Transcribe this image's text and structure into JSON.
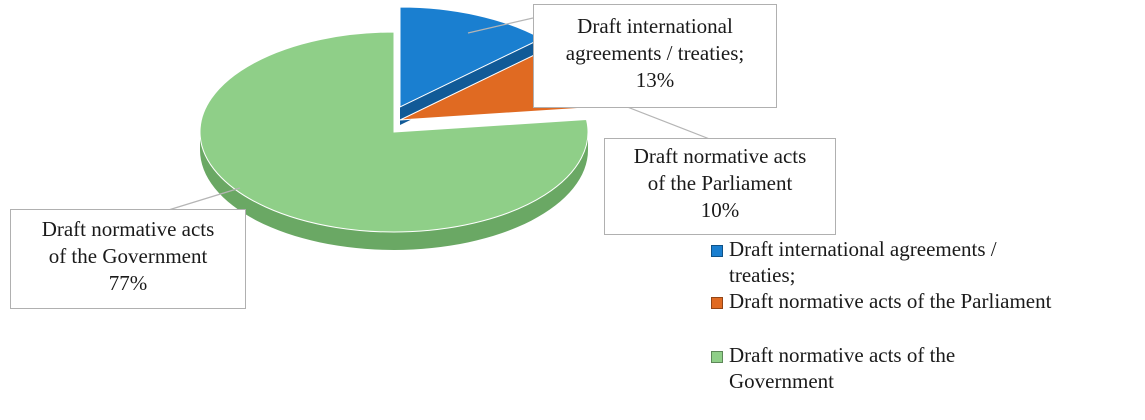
{
  "chart_data": {
    "type": "pie",
    "style": "3d-exploded",
    "categories": [
      "Draft international agreements / treaties;",
      "Draft normative acts of the Parliament",
      "Draft normative acts of the Government"
    ],
    "values": [
      13,
      10,
      77
    ],
    "unit": "%",
    "colors": [
      "#1a7fd0",
      "#e06a22",
      "#8fcf88"
    ],
    "side_colors": [
      "#115a97",
      "#a84d16",
      "#6aa864"
    ],
    "legend_position": "right-bottom",
    "data_labels": {
      "treaties": {
        "line1": "Draft international",
        "line2": "agreements / treaties;",
        "line3": "13%"
      },
      "parliament": {
        "line1": "Draft normative acts",
        "line2": "of the Parliament",
        "line3": "10%"
      },
      "government": {
        "line1": "Draft normative acts",
        "line2": "of the Government",
        "line3": "77%"
      }
    },
    "legend": [
      {
        "line1": "Draft international agreements /",
        "line2": "treaties;"
      },
      {
        "line1": "Draft normative acts of the Parliament",
        "line2": ""
      },
      {
        "line1": "Draft normative acts of the",
        "line2": "Government"
      }
    ]
  }
}
